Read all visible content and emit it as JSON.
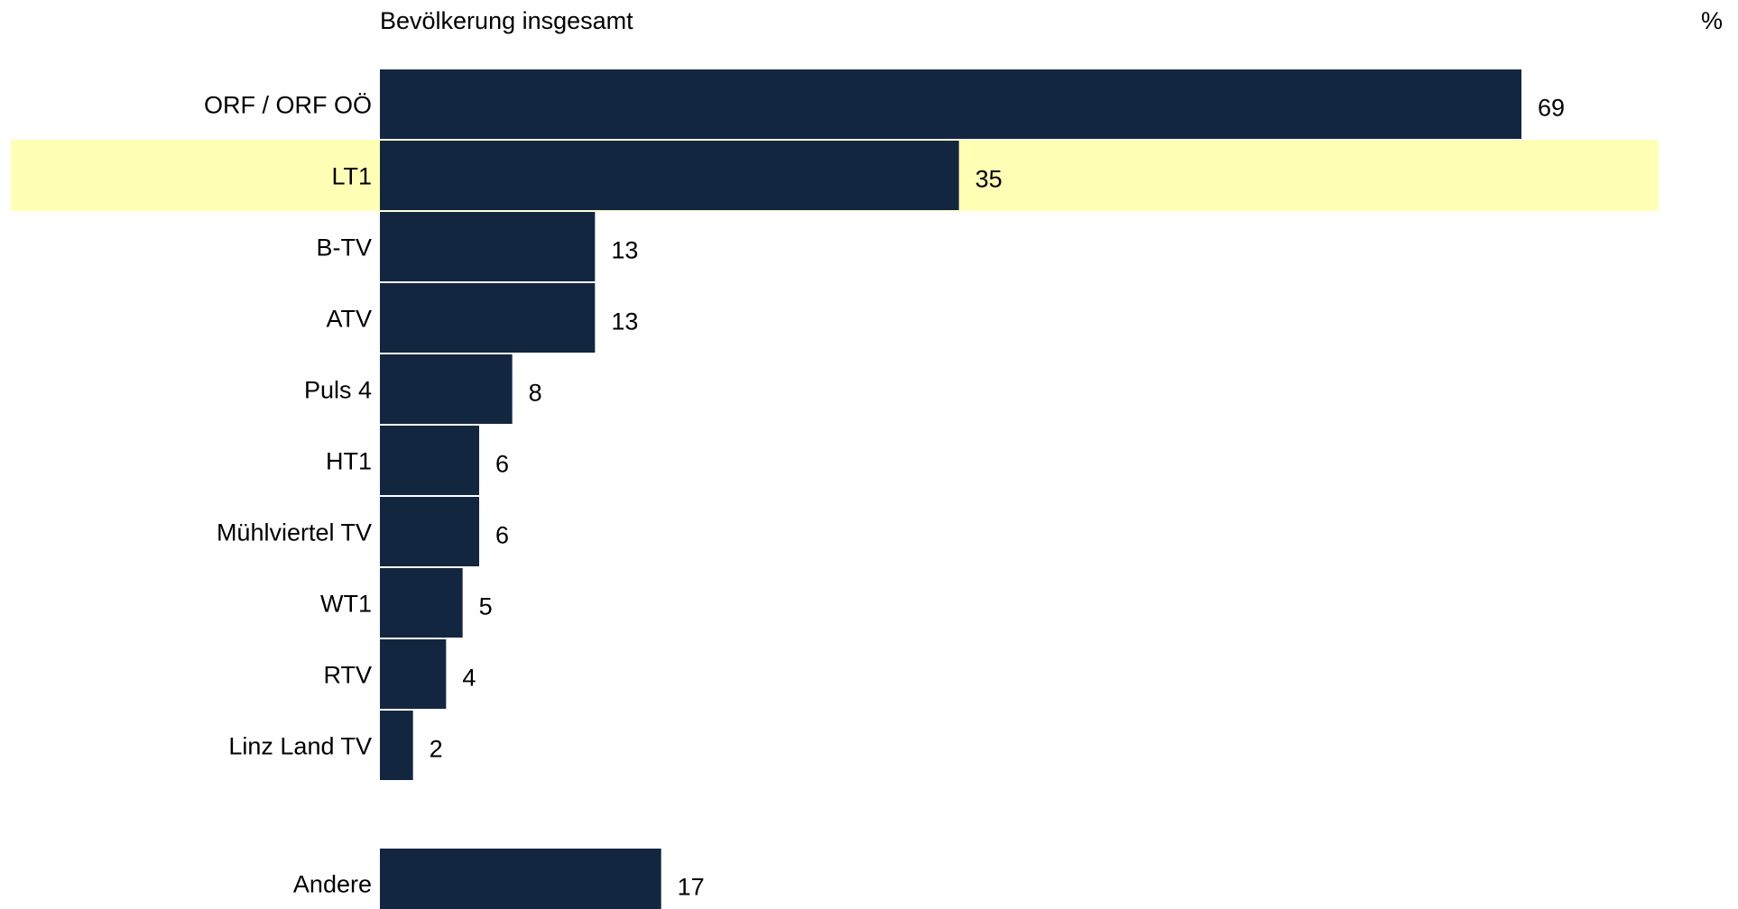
{
  "chart_data": {
    "type": "bar",
    "orientation": "horizontal",
    "title": "Bevölkerung insgesamt",
    "unit": "%",
    "categories": [
      "ORF / ORF OÖ",
      "LT1",
      "B-TV",
      "ATV",
      "Puls 4",
      "HT1",
      "Mühlviertel TV",
      "WT1",
      "RTV",
      "Linz Land TV",
      "Andere"
    ],
    "values": [
      69,
      35,
      13,
      13,
      8,
      6,
      6,
      5,
      4,
      2,
      17
    ],
    "highlighted_category": "LT1",
    "xlim": [
      0,
      69
    ],
    "grid": false,
    "legend": "none"
  },
  "colors": {
    "bar": "#13263f",
    "highlight_band": "#ffffb5",
    "bar_separator": "#ffffff",
    "text": "#000000"
  }
}
